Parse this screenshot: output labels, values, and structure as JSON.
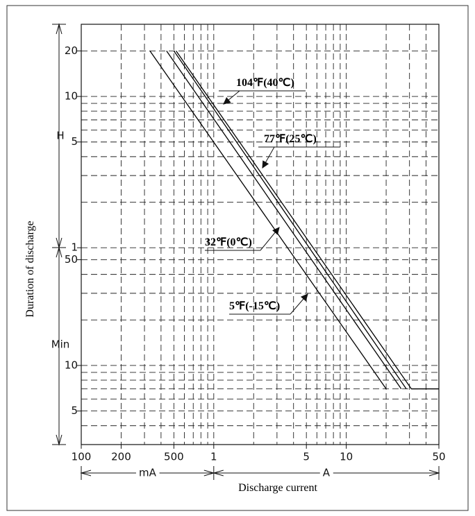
{
  "chart_data": {
    "type": "line",
    "y_label": "Duration of discharge",
    "x_label": "Discharge current",
    "x_log": true,
    "y_log": true,
    "xlim": [
      0.1,
      50
    ],
    "ylim": [
      3,
      1800
    ],
    "xticks": [
      {
        "value": 0.1,
        "label": "100"
      },
      {
        "value": 0.2,
        "label": "200"
      },
      {
        "value": 0.5,
        "label": "500"
      },
      1,
      5,
      10,
      50
    ],
    "yticks": [
      {
        "value": 1200,
        "label": "20"
      },
      {
        "value": 600,
        "label": "10"
      },
      {
        "value": 300,
        "label": "5"
      },
      {
        "value": 60,
        "label": "1"
      },
      50,
      10,
      5
    ],
    "xgrid": [
      0.2,
      0.3,
      0.4,
      0.5,
      0.6,
      0.7,
      0.8,
      0.9,
      1,
      2,
      3,
      4,
      5,
      6,
      7,
      8,
      9,
      10,
      20,
      30,
      40
    ],
    "ygrid": [
      1200,
      600,
      540,
      480,
      420,
      360,
      300,
      240,
      180,
      120,
      60,
      50,
      40,
      30,
      20,
      10,
      9,
      8,
      7,
      6,
      5,
      4
    ],
    "x_units": [
      "mA",
      "A"
    ],
    "y_units": [
      "H",
      "Min"
    ],
    "series": [
      {
        "name": "104℉(40℃)",
        "color": "#000000",
        "x": [
          0.52,
          31,
          50
        ],
        "values": [
          1200,
          7,
          7
        ]
      },
      {
        "name": "77℉(25℃)",
        "color": "#000000",
        "x": [
          0.5,
          28.4
        ],
        "values": [
          1200,
          7
        ]
      },
      {
        "name": "32℉(0℃)",
        "color": "#000000",
        "x": [
          0.44,
          26
        ],
        "values": [
          1200,
          7
        ]
      },
      {
        "name": "5℉(-15℃)",
        "color": "#000000",
        "x": [
          0.33,
          20
        ],
        "values": [
          1200,
          7
        ]
      }
    ]
  }
}
